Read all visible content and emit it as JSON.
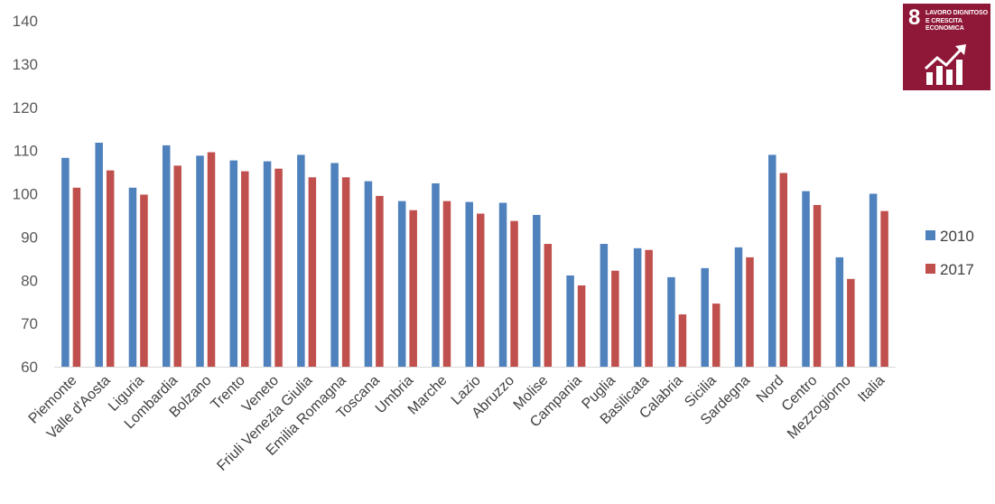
{
  "badge": {
    "number": "8",
    "text": "LAVORO DIGNITOSO E CRESCITA ECONOMICA",
    "color": "#8f1838",
    "icon": "growth-chart-arrow-icon"
  },
  "chart_data": {
    "type": "bar",
    "title": "",
    "xlabel": "",
    "ylabel": "",
    "ylim": [
      60,
      140
    ],
    "yticks": [
      60,
      70,
      80,
      90,
      100,
      110,
      120,
      130,
      140
    ],
    "grid": false,
    "legend_position": "right",
    "categories": [
      "Piemonte",
      "Valle d'Aosta",
      "Liguria",
      "Lombardia",
      "Bolzano",
      "Trento",
      "Veneto",
      "Friuli Venezia Giulia",
      "Emilia Romagna",
      "Toscana",
      "Umbria",
      "Marche",
      "Lazio",
      "Abruzzo",
      "Molise",
      "Campania",
      "Puglia",
      "Basilicata",
      "Calabria",
      "Sicilia",
      "Sardegna",
      "Nord",
      "Centro",
      "Mezzogiorno",
      "Italia"
    ],
    "series": [
      {
        "name": "2010",
        "color": "#4f81bd",
        "values": [
          108.3,
          111.8,
          101.4,
          111.2,
          108.8,
          107.7,
          107.5,
          109.0,
          107.1,
          102.9,
          98.3,
          102.4,
          98.1,
          97.9,
          95.1,
          81.1,
          88.4,
          87.4,
          80.7,
          82.8,
          87.6,
          109.0,
          100.6,
          85.3,
          100.0
        ]
      },
      {
        "name": "2017",
        "color": "#c0504d",
        "values": [
          101.4,
          105.4,
          99.8,
          106.5,
          109.6,
          105.2,
          105.8,
          103.8,
          103.8,
          99.5,
          96.2,
          98.3,
          95.4,
          93.7,
          88.4,
          78.8,
          82.2,
          87.0,
          72.1,
          74.6,
          85.3,
          104.8,
          97.4,
          80.3,
          96.0
        ]
      }
    ]
  }
}
